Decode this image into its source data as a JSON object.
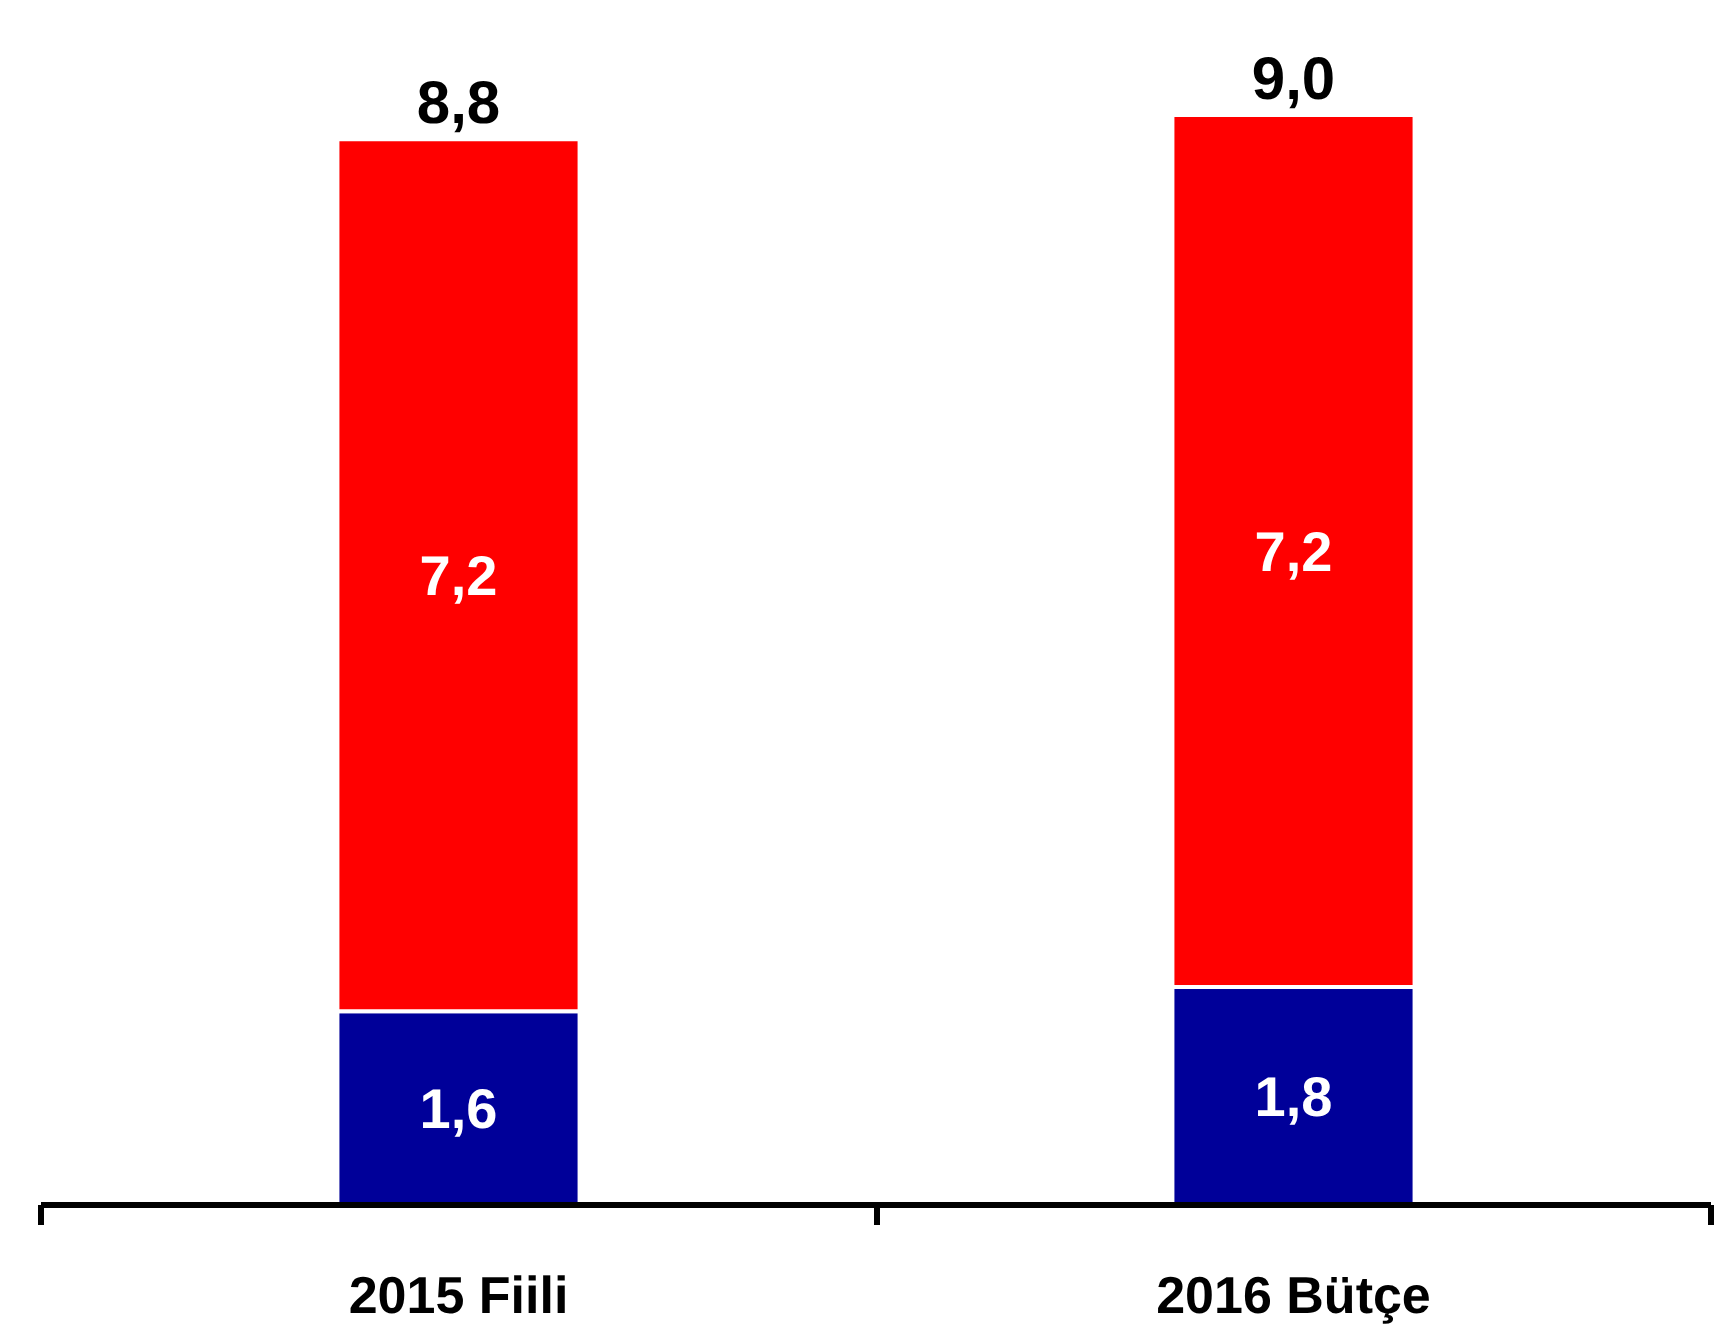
{
  "chart_data": {
    "type": "bar",
    "stacked": true,
    "categories": [
      "2015 Fiili",
      "2016 Bütçe"
    ],
    "series": [
      {
        "color": "#000099",
        "values": [
          1.6,
          1.8
        ],
        "value_labels": [
          "1,6",
          "1,8"
        ]
      },
      {
        "color": "#ff0000",
        "values": [
          7.2,
          7.2
        ],
        "value_labels": [
          "7,2",
          "7,2"
        ]
      }
    ],
    "totals": [
      "8,8",
      "9,0"
    ],
    "grid": false,
    "tick_labels": "x"
  }
}
